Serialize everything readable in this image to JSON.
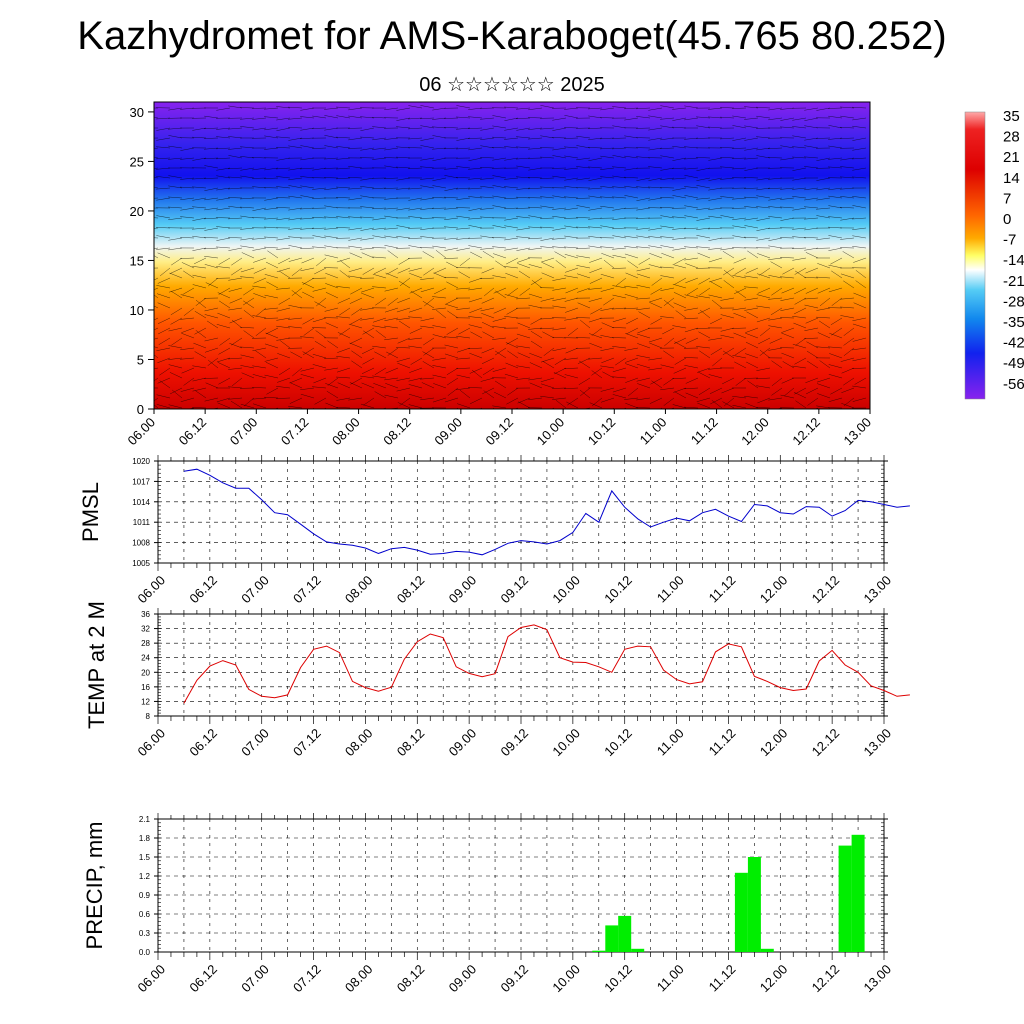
{
  "title": "Kazhydromet for AMS-Karaboget(45.765 80.252)",
  "subtitle": "06 ☆☆☆☆☆☆ 2025",
  "colors": {
    "pmsl_line": "#0000cc",
    "temp_line": "#dd0000",
    "precip_bar": "#00ee00"
  },
  "chart_data": [
    {
      "type": "heatmap",
      "name": "cross-section",
      "x_ticks": [
        "06.00",
        "06.12",
        "07.00",
        "07.12",
        "08.00",
        "08.12",
        "09.00",
        "09.12",
        "10.00",
        "10.12",
        "11.00",
        "11.12",
        "12.00",
        "12.12",
        "13.00"
      ],
      "y_ticks": [
        0,
        5,
        10,
        15,
        20,
        25,
        30
      ],
      "ylim": [
        0,
        31
      ],
      "colorbar": {
        "labels": [
          "35",
          "28",
          "21",
          "14",
          "7",
          "0",
          "-7",
          "-14",
          "-21",
          "-28",
          "-35",
          "-42",
          "-49",
          "-56"
        ]
      }
    },
    {
      "type": "line",
      "name": "pmsl",
      "ylabel": "PMSL",
      "ylim": [
        1005,
        1020
      ],
      "y_ticks": [
        1005,
        1008,
        1011,
        1014,
        1017,
        1020
      ],
      "x_ticks": [
        "06.00",
        "06.12",
        "07.00",
        "07.12",
        "08.00",
        "08.12",
        "09.00",
        "09.12",
        "10.00",
        "10.12",
        "11.00",
        "11.12",
        "12.00",
        "12.12",
        "13.00"
      ],
      "x": [
        0,
        3,
        6,
        9,
        12,
        15,
        18,
        21,
        24,
        27,
        30,
        33,
        36,
        39,
        42,
        45,
        48,
        51,
        54,
        57,
        60,
        63,
        66,
        69,
        72,
        75,
        78,
        81,
        84,
        87,
        90,
        93,
        96,
        99,
        102,
        105,
        108,
        111,
        114,
        117,
        120,
        123,
        126,
        129,
        132,
        135,
        138,
        141,
        144,
        147,
        150,
        153,
        156,
        159,
        162,
        165,
        168
      ],
      "values": [
        1018.5,
        1018.8,
        1017.9,
        1016.8,
        1016.0,
        1016.0,
        1014.3,
        1012.4,
        1012.1,
        1010.7,
        1009.3,
        1008.1,
        1007.8,
        1007.6,
        1007.2,
        1006.4,
        1007.1,
        1007.3,
        1006.9,
        1006.3,
        1006.4,
        1006.7,
        1006.6,
        1006.2,
        1007.0,
        1007.9,
        1008.3,
        1008.1,
        1007.8,
        1008.3,
        1009.5,
        1012.3,
        1011.0,
        1015.6,
        1013.2,
        1011.5,
        1010.3,
        1011.0,
        1011.6,
        1011.2,
        1012.4,
        1012.9,
        1011.9,
        1011.1,
        1013.6,
        1013.4,
        1012.4,
        1012.2,
        1013.3,
        1013.2,
        1011.9,
        1012.7,
        1014.2,
        1014.0,
        1013.6,
        1013.2,
        1013.4
      ]
    },
    {
      "type": "line",
      "name": "temp",
      "ylabel": "TEMP at 2 M",
      "ylim": [
        8,
        36
      ],
      "y_ticks": [
        8,
        12,
        16,
        20,
        24,
        28,
        32,
        36
      ],
      "x_ticks": [
        "06.00",
        "06.12",
        "07.00",
        "07.12",
        "08.00",
        "08.12",
        "09.00",
        "09.12",
        "10.00",
        "10.12",
        "11.00",
        "11.12",
        "12.00",
        "12.12",
        "13.00"
      ],
      "x": [
        0,
        3,
        6,
        9,
        12,
        15,
        18,
        21,
        24,
        27,
        30,
        33,
        36,
        39,
        42,
        45,
        48,
        51,
        54,
        57,
        60,
        63,
        66,
        69,
        72,
        75,
        78,
        81,
        84,
        87,
        90,
        93,
        96,
        99,
        102,
        105,
        108,
        111,
        114,
        117,
        120,
        123,
        126,
        129,
        132,
        135,
        138,
        141,
        144,
        147,
        150,
        153,
        156,
        159,
        162,
        165,
        168
      ],
      "values": [
        11.5,
        17.8,
        21.7,
        23.2,
        22.0,
        15.3,
        13.4,
        13.0,
        13.8,
        21.3,
        26.3,
        27.2,
        25.4,
        17.5,
        15.8,
        14.8,
        15.9,
        23.6,
        28.4,
        30.5,
        29.5,
        21.5,
        19.7,
        18.8,
        19.6,
        29.8,
        32.3,
        33.0,
        31.7,
        24.0,
        22.8,
        22.7,
        21.5,
        20.0,
        26.3,
        27.2,
        27.0,
        20.6,
        18.0,
        16.8,
        17.4,
        25.6,
        27.8,
        27.0,
        18.9,
        17.5,
        15.8,
        15.0,
        15.4,
        23.1,
        26.0,
        22.0,
        20.0,
        16.3,
        15.0,
        13.4,
        13.8
      ]
    },
    {
      "type": "bar",
      "name": "precip",
      "ylabel": "PRECIP, mm",
      "ylim": [
        0,
        2.1
      ],
      "y_ticks": [
        "0.0",
        "0.3",
        "0.6",
        "0.9",
        "1.2",
        "1.5",
        "1.8",
        "2.1"
      ],
      "x_ticks": [
        "06.00",
        "06.12",
        "07.00",
        "07.12",
        "08.00",
        "08.12",
        "09.00",
        "09.12",
        "10.00",
        "10.12",
        "11.00",
        "11.12",
        "12.00",
        "12.12",
        "13.00"
      ],
      "bars": [
        {
          "x": 96,
          "value": 0.02
        },
        {
          "x": 99,
          "value": 0.42
        },
        {
          "x": 102,
          "value": 0.57
        },
        {
          "x": 105,
          "value": 0.05
        },
        {
          "x": 129,
          "value": 1.25
        },
        {
          "x": 132,
          "value": 1.5
        },
        {
          "x": 135,
          "value": 0.05
        },
        {
          "x": 153,
          "value": 1.68
        },
        {
          "x": 156,
          "value": 1.85
        }
      ]
    }
  ]
}
